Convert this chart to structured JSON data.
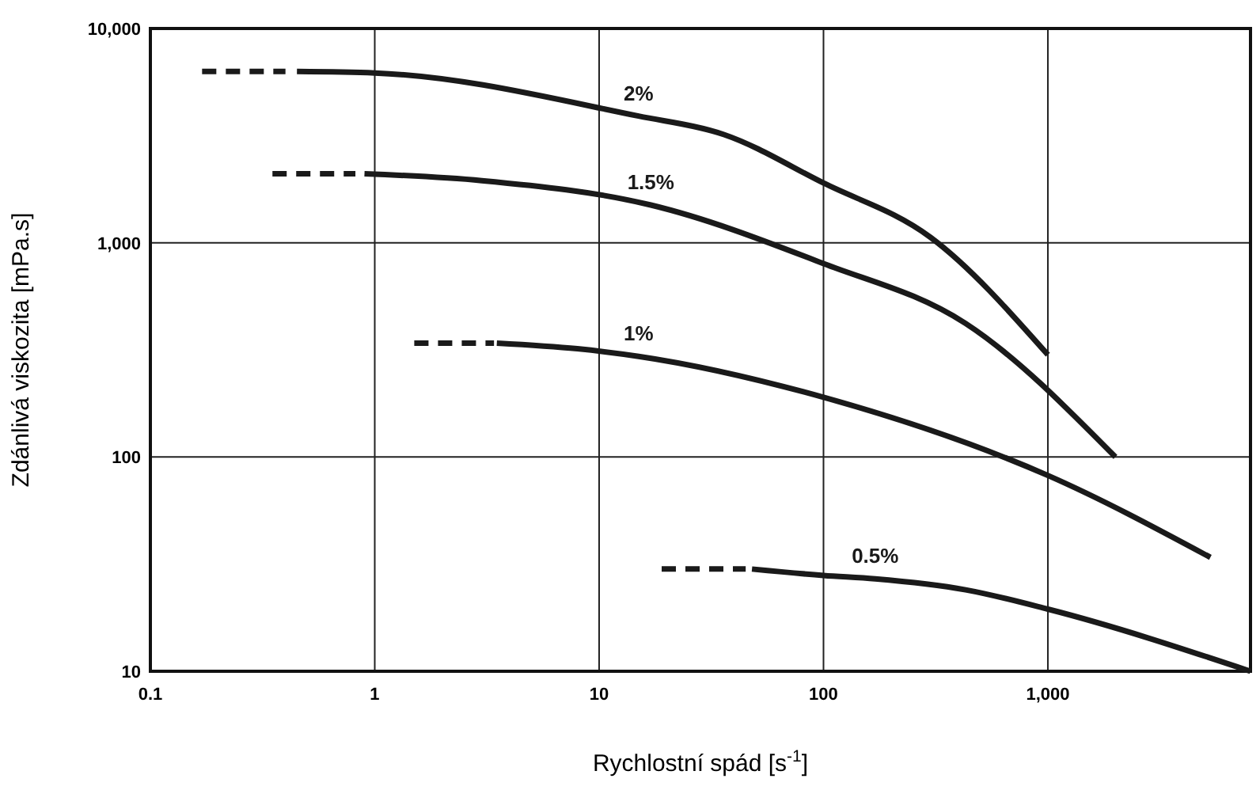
{
  "chart_data": {
    "type": "line",
    "xlabel": "Rychlostní spád [s$^{-1}$]",
    "ylabel": "Zdánlivá viskozita [mPa.s]",
    "log": "xy",
    "grid": true,
    "marker": "none",
    "xlim": [
      0.1,
      8000
    ],
    "ylim": [
      10,
      10000
    ],
    "xticks": [
      0.1,
      1,
      10,
      100,
      {
        "value": 1000,
        "label": "1,000"
      }
    ],
    "yticks": [
      10,
      100,
      {
        "value": 1000,
        "label": "1,000"
      },
      {
        "value": 10000,
        "label": "10,000"
      }
    ],
    "series": [
      {
        "color": "#1a1a1a",
        "line_style": "dashed",
        "x": [
          0.17,
          0.4
        ],
        "values": [
          6300,
          6300
        ]
      },
      {
        "name": "2%",
        "color": "#1a1a1a",
        "line_style": "solid",
        "x": [
          0.45,
          1,
          15,
          36,
          100,
          300,
          1000
        ],
        "values": [
          6300,
          6200,
          3900,
          3200,
          1900,
          1060,
          300
        ]
      },
      {
        "color": "#1a1a1a",
        "line_style": "dashed",
        "x": [
          0.35,
          0.82
        ],
        "values": [
          2100,
          2100
        ]
      },
      {
        "name": "1.5%",
        "color": "#1a1a1a",
        "line_style": "solid",
        "x": [
          0.9,
          3,
          17,
          100,
          430,
          2000
        ],
        "values": [
          2100,
          1950,
          1500,
          800,
          420,
          100
        ]
      },
      {
        "color": "#1a1a1a",
        "line_style": "dashed",
        "x": [
          1.5,
          3.4
        ],
        "values": [
          340,
          340
        ]
      },
      {
        "name": "1%",
        "color": "#1a1a1a",
        "line_style": "solid",
        "x": [
          3.5,
          8,
          15,
          100,
          1000,
          5300
        ],
        "values": [
          340,
          320,
          295,
          190,
          82,
          34
        ]
      },
      {
        "color": "#1a1a1a",
        "line_style": "dashed",
        "x": [
          19,
          45
        ],
        "values": [
          30,
          30
        ]
      },
      {
        "name": "0.5%",
        "color": "#1a1a1a",
        "line_style": "solid",
        "x": [
          48,
          100,
          170,
          430,
          1000,
          8000
        ],
        "values": [
          30,
          28,
          27,
          24,
          19.5,
          10
        ]
      }
    ]
  }
}
